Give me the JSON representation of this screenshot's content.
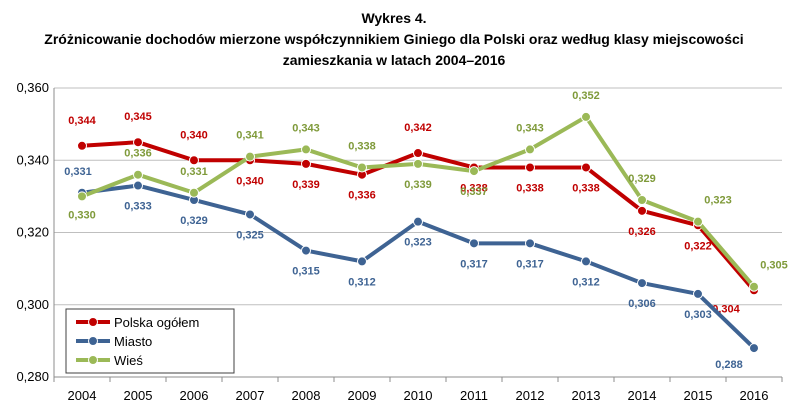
{
  "chart_data": {
    "type": "line",
    "title_line1": "Wykres 4.",
    "title_line2": "Zróżnicowanie dochodów mierzone współczynnikiem Giniego dla Polski oraz według klasy miejscowości zamieszkania w latach 2004–2016",
    "categories": [
      "2004",
      "2005",
      "2006",
      "2007",
      "2008",
      "2009",
      "2010",
      "2011",
      "2012",
      "2013",
      "2014",
      "2015",
      "2016"
    ],
    "y_ticks": [
      "0,280",
      "0,300",
      "0,320",
      "0,340",
      "0,360"
    ],
    "ylim": [
      0.28,
      0.36
    ],
    "grid": true,
    "legend_position": "bottom-left",
    "series": [
      {
        "name": "Polska ogółem",
        "color": "#c00000",
        "values": [
          0.344,
          0.345,
          0.34,
          0.34,
          0.339,
          0.336,
          0.342,
          0.338,
          0.338,
          0.338,
          0.326,
          0.322,
          0.304
        ],
        "labels": [
          "0,344",
          "0,345",
          "0,340",
          "0,340",
          "0,339",
          "0,336",
          "0,342",
          "0,338",
          "0,338",
          "0,338",
          "0,326",
          "0,322",
          "0,304"
        ]
      },
      {
        "name": "Miasto",
        "color": "#3e6393",
        "values": [
          0.331,
          0.333,
          0.329,
          0.325,
          0.315,
          0.312,
          0.323,
          0.317,
          0.317,
          0.312,
          0.306,
          0.303,
          0.288
        ],
        "labels": [
          "0,331",
          "0,333",
          "0,329",
          "0,325",
          "0,315",
          "0,312",
          "0,323",
          "0,317",
          "0,317",
          "0,312",
          "0,306",
          "0,303",
          "0,288"
        ]
      },
      {
        "name": "Wieś",
        "color": "#9bb957",
        "label_color": "#7f9a3a",
        "values": [
          0.33,
          0.336,
          0.331,
          0.341,
          0.343,
          0.338,
          0.339,
          0.337,
          0.343,
          0.352,
          0.329,
          0.323,
          0.305
        ],
        "labels": [
          "0,330",
          "0,336",
          "0,331",
          "0,341",
          "0,343",
          "0,338",
          "0,339",
          "0,337",
          "0,343",
          "0,352",
          "0,329",
          "0,323",
          "0,305"
        ]
      }
    ]
  }
}
